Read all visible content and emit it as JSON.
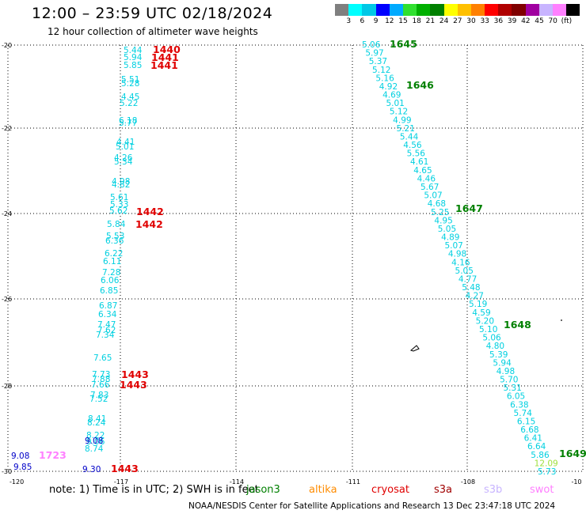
{
  "header": {
    "title": "12:00 – 23:59 UTC 02/18/2024",
    "subtitle": "12 hour collection of altimeter wave heights"
  },
  "color_scale": {
    "labels": [
      "3",
      "6",
      "9",
      "12",
      "15",
      "18",
      "21",
      "24",
      "27",
      "30",
      "33",
      "36",
      "39",
      "42",
      "45",
      "70",
      "(ft)"
    ],
    "colors": [
      "#7f7f7f",
      "#00ffff",
      "#00c8e6",
      "#0000ff",
      "#00aaff",
      "#30e030",
      "#00b000",
      "#008000",
      "#ffff00",
      "#ffc000",
      "#ff8000",
      "#ff0000",
      "#b00000",
      "#800000",
      "#a000a0",
      "#c8b4ff",
      "#ff80ff",
      "#000000"
    ]
  },
  "axes": {
    "lon_ticks": [
      "-120",
      "-117",
      "-114",
      "-111",
      "-108",
      "-10"
    ],
    "lat_ticks": [
      "-20",
      "-22",
      "-24",
      "-26",
      "-28",
      "-30"
    ]
  },
  "tracks": [
    {
      "id": "t-left",
      "color": "#00d0e0",
      "values": [
        "5.44",
        "5.94",
        "5.85",
        "5.51",
        "5.28",
        "4.45",
        "5.22",
        "6.18",
        "5.77",
        "4.41",
        "5.01",
        "4.26",
        "5.34",
        "4.98",
        "4.82",
        "5.61",
        "5.33",
        "5.62",
        "5.84",
        "5.53",
        "6.36",
        "6.22",
        "6.11",
        "7.28",
        "6.06",
        "6.85",
        "6.87",
        "6.34",
        "7.47",
        "7.62",
        "7.34",
        "7.65",
        "7.73",
        "7.88",
        "7.66",
        "7.83",
        "7.52",
        "8.41",
        "8.24",
        "8.22",
        "9.06",
        "8.74"
      ]
    },
    {
      "id": "t-left-blue",
      "color": "#0000c8",
      "values": [
        "9.08",
        "9.30",
        "9.08",
        "9.85"
      ]
    },
    {
      "id": "t-diag",
      "color": "#00d0e0",
      "values": [
        "5.06",
        "5.97",
        "5.37",
        "5.12",
        "5.16",
        "4.92",
        "4.69",
        "5.01",
        "5.12",
        "4.99",
        "5.21",
        "5.44",
        "4.56",
        "5.56",
        "4.61",
        "4.65",
        "4.46",
        "5.67",
        "5.07",
        "4.68",
        "5.25",
        "4.95",
        "5.05",
        "4.89",
        "5.07",
        "4.98",
        "4.16",
        "5.05",
        "4.77",
        "5.48",
        "4.27",
        "5.19",
        "4.59",
        "5.20",
        "5.10",
        "5.06",
        "4.80",
        "5.39",
        "5.94",
        "4.98",
        "5.70",
        "5.31",
        "6.05",
        "6.38",
        "5.74",
        "6.15",
        "6.68",
        "6.41",
        "6.64",
        "5.86",
        "12.09",
        "5.73"
      ]
    }
  ],
  "time_labels": [
    {
      "text": "1440",
      "color": "#e00000"
    },
    {
      "text": "1441",
      "color": "#e00000"
    },
    {
      "text": "1441",
      "color": "#e00000"
    },
    {
      "text": "1442",
      "color": "#e00000"
    },
    {
      "text": "1442",
      "color": "#e00000"
    },
    {
      "text": "1443",
      "color": "#e00000"
    },
    {
      "text": "1443",
      "color": "#e00000"
    },
    {
      "text": "1443",
      "color": "#e00000"
    },
    {
      "text": "1723",
      "color": "#ff80ff"
    },
    {
      "text": "1645",
      "color": "#008000"
    },
    {
      "text": "1646",
      "color": "#008000"
    },
    {
      "text": "1647",
      "color": "#008000"
    },
    {
      "text": "1648",
      "color": "#008000"
    },
    {
      "text": "1649",
      "color": "#008000"
    }
  ],
  "note": "note: 1) Time is in UTC; 2) SWH is in feet",
  "satellites": [
    {
      "name": "jason3",
      "color": "#008000"
    },
    {
      "name": "altika",
      "color": "#ff8c00"
    },
    {
      "name": "cryosat",
      "color": "#e00000"
    },
    {
      "name": "s3a",
      "color": "#a00000"
    },
    {
      "name": "s3b",
      "color": "#c8b4ff"
    },
    {
      "name": "swot",
      "color": "#ff80ff"
    }
  ],
  "footer": "NOAA/NESDIS Center for Satellite Applications and Research   13 Dec 23:47:18 UTC 2024"
}
